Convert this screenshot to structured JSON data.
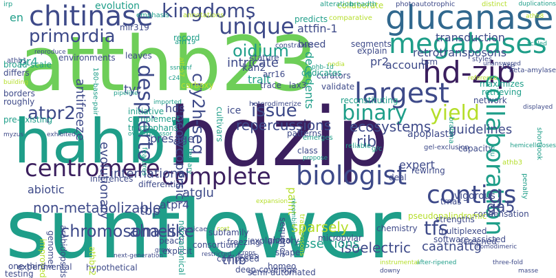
{
  "colors": {
    "background": "#ffffff",
    "dark_purple": "#3b1f5e",
    "purple": "#482878",
    "indigo": "#3e4a89",
    "blue": "#31688e",
    "teal_blue": "#26828e",
    "teal": "#1f9e89",
    "green": "#35b779",
    "light_green": "#6ece58",
    "lime": "#b5de2b",
    "yellow": "#d9e021"
  },
  "words": [
    "atthb23",
    "hahb1",
    "hdzip",
    "sunflower",
    "chitinase",
    "glucanase",
    "megabases",
    "hd-zip",
    "largest",
    "kingdoms",
    "unique",
    "centromere",
    "collaboration",
    "complete",
    "biologist",
    "binary",
    "yield",
    "contigs",
    "issue",
    "primordia",
    "oidium",
    "atpr2",
    "despierto",
    "cry2h-seq",
    "tfs",
    "chromosomes",
    "aha-like",
    "ga5",
    "sparsely",
    "non-metabolizable",
    "ecosystems",
    "guidelines",
    "rib",
    "atglu",
    "international",
    "caatnattg",
    "tfiib",
    "isoelectric",
    "repercussions",
    "assertions",
    "account",
    "transduction",
    "retrotransposons",
    "decedents",
    "intricate",
    "attfin-1",
    "evolutionary",
    "presage",
    "abiotic",
    "antifreeze",
    "neolycopersici",
    "hds",
    "tyr",
    "en",
    "pr4",
    "atpr4",
    "tbp",
    "kan2",
    "trait",
    "expert",
    "paint",
    "pr2",
    "apoplasts",
    "vigorous",
    "condensation",
    "reconstituting",
    "network",
    "collaborate",
    "evolution",
    "arrf19",
    "mir319",
    "record",
    "stature",
    "trace",
    "lax3",
    "ice",
    "arr16",
    "curators",
    "validate",
    "breed",
    "segments",
    "explain",
    "dedicates",
    "predicts",
    "alteration",
    "breadth",
    "photoautotrophic",
    "duplications",
    "emphasis",
    "annotations",
    "irp",
    "distinct",
    "comparative",
    "constraints",
    "nodia",
    "cre",
    "brm",
    "styles",
    "beta-amylase",
    "maximizes",
    "retrieving",
    "environments",
    "reproduce",
    "athb1",
    "athb7",
    "carboxy",
    "leaves",
    "180-base-pair",
    "broad-scale",
    "differs",
    "building",
    "borders",
    "roughly",
    "initiative",
    "complement",
    "tryptophans",
    "overexpressor",
    "pre-existing",
    "exhibited",
    "myzus",
    "heterodimerize",
    "patterns",
    "emerges",
    "class",
    "propose",
    "reliable",
    "g/c",
    "gel-exclusion",
    "brahma",
    "capacity",
    "hemicelluloses",
    "shortrook",
    "glu",
    "rewiring",
    "deal",
    "differential",
    "features",
    "tertiary",
    "inferences",
    "persicae",
    "cost",
    "peach",
    "explicit",
    "noncanonical",
    "subfamily",
    "freezing",
    "explanatory",
    "sequence",
    "micropylar",
    "transposons",
    "recombinase",
    "chemistry",
    "pseudopalindromic",
    "trnas",
    "strengths",
    "multiplexed",
    "software-assisted",
    "penalty",
    "screened",
    "homodimeric",
    "three-fold",
    "masse",
    "after-ripened",
    "instrumental",
    "downy",
    "global",
    "shape",
    "trees",
    "composed",
    "consortium",
    "restricted",
    "grow",
    "crops",
    "homeo",
    "semi-automated",
    "deep-coverage",
    "hypothetical",
    "athb12",
    "next-generation",
    "arabidopsids",
    "genomes",
    "improved",
    "experimental",
    "one-third",
    "testing",
    "unanswered",
    "ssn/snf",
    "phb-1d",
    "expansion",
    "imported",
    "athb3",
    "pipeline",
    "c24",
    "athb8",
    "cultivars",
    "displayed",
    "reference",
    "scaled",
    "duplicate"
  ]
}
